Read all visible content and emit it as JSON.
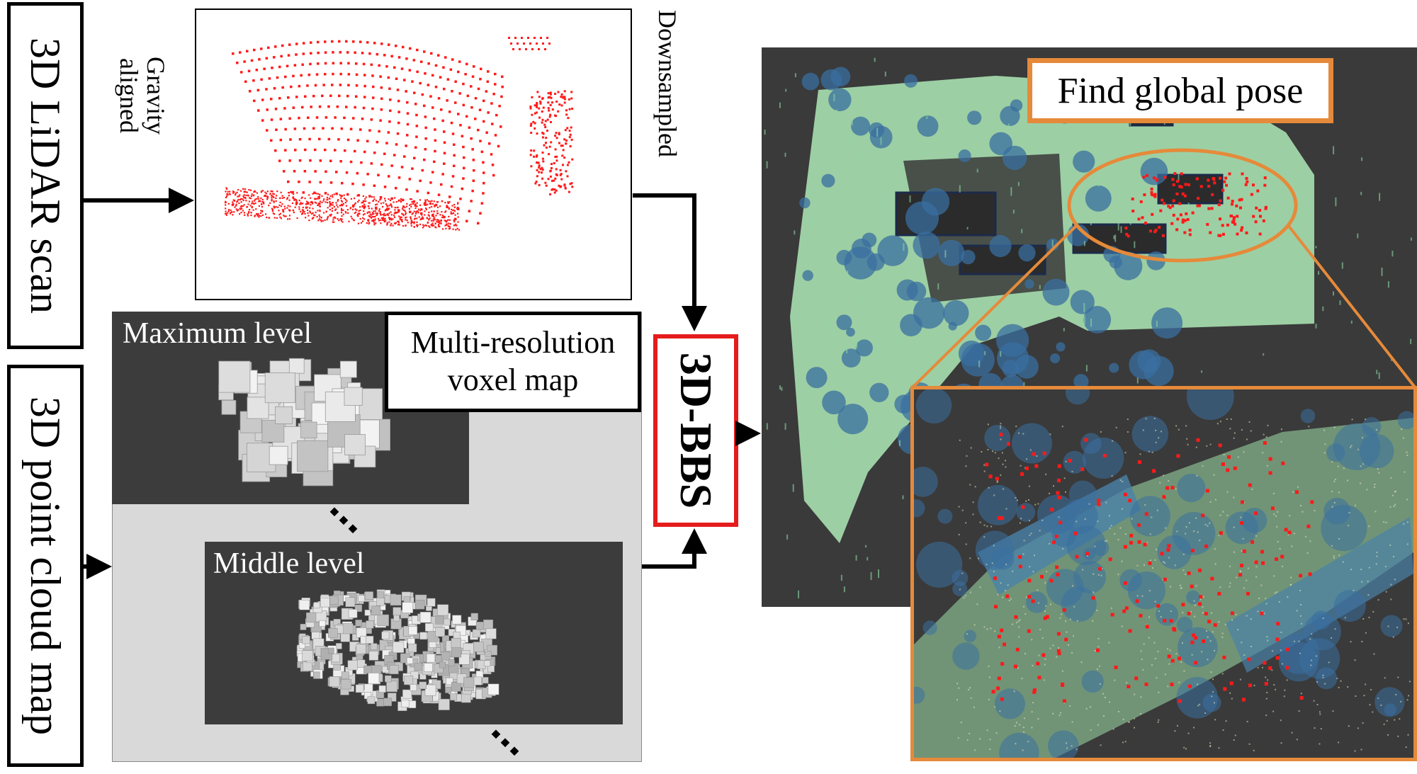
{
  "inputs": {
    "lidar_scan": "3D LiDAR scan",
    "point_cloud_map": "3D point cloud map"
  },
  "annotations": {
    "gravity_aligned": [
      "Gravity",
      "aligned"
    ],
    "downsampled": "Downsampled"
  },
  "voxel_map": {
    "title_line1": "Multi-resolution",
    "title_line2": "voxel map",
    "maximum_level": "Maximum level",
    "middle_level": "Middle level"
  },
  "method": {
    "label": "3D-BBS"
  },
  "output": {
    "label": "Find global pose"
  },
  "colors": {
    "scan_points": "#ff1a1a",
    "bbs_border": "#e51c1c",
    "highlight": "#e58a3a",
    "map_background": "#3a3a3a",
    "map_ground": "#a8e0b0",
    "map_trees": "#3a6fa0",
    "voxel_panel": "#3c3c3c",
    "voxel_bg": "#d9d9d9"
  }
}
